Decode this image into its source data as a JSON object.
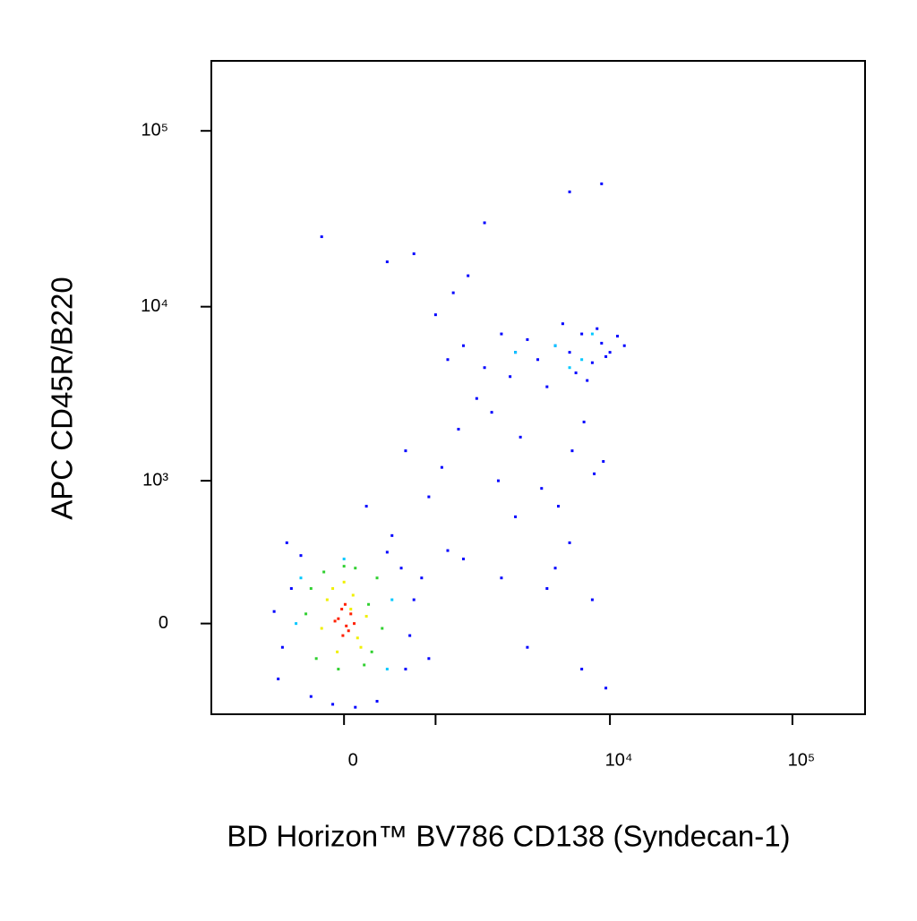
{
  "chart_data": {
    "type": "scatter",
    "x_label": "BD Horizon™ BV786 CD138 (Syndecan-1)",
    "y_label": "APC CD45R/B220",
    "scale": "biexponential",
    "xlim": [
      -1800,
      250000
    ],
    "ylim": [
      -470,
      250000
    ],
    "xticks": [
      {
        "value": 0,
        "label": "0"
      },
      {
        "value": 1000,
        "label": null
      },
      {
        "value": 10000,
        "label": "10⁴"
      },
      {
        "value": 100000,
        "label": "10⁵"
      }
    ],
    "yticks": [
      {
        "value": 0,
        "label": "0"
      },
      {
        "value": 1000,
        "label": "10³"
      },
      {
        "value": 10000,
        "label": "10⁴"
      },
      {
        "value": 100000,
        "label": "10⁵"
      }
    ],
    "series": [
      {
        "color": "#0000ff",
        "x": [
          -600,
          -500,
          -700,
          600,
          700,
          550,
          -300,
          300,
          -650,
          650,
          -400,
          400,
          800,
          900,
          -550,
          100,
          -100,
          450,
          1200,
          1500,
          2000,
          2500,
          3000,
          3500,
          4000,
          5000,
          6000,
          7000,
          8000,
          9000,
          10000,
          11000,
          12000,
          1800,
          2200,
          2800,
          4500,
          5500,
          6500,
          7500,
          8500,
          9500,
          1000,
          1300,
          1600,
          700,
          -200,
          400,
          600,
          900,
          1100,
          1400,
          2400,
          3200,
          4200,
          5200,
          6200,
          7200,
          8200,
          9200,
          1500,
          2500,
          3500,
          4500,
          6000,
          8000,
          9500,
          3000,
          5000,
          7000,
          200,
          1200,
          2000,
          6000,
          9000
        ],
        "y": [
          -100,
          150,
          50,
          -200,
          100,
          250,
          -350,
          -380,
          -250,
          -50,
          320,
          340,
          200,
          -150,
          400,
          -420,
          -400,
          450,
          5000,
          6000,
          4500,
          7000,
          5500,
          6500,
          5000,
          6000,
          5500,
          7000,
          4800,
          6200,
          5500,
          6800,
          6000,
          3000,
          2500,
          4000,
          3500,
          8000,
          4200,
          3800,
          7500,
          5200,
          9000,
          12000,
          15000,
          20000,
          25000,
          18000,
          1500,
          800,
          1200,
          2000,
          1000,
          1800,
          900,
          700,
          1500,
          2200,
          1100,
          1300,
          300,
          200,
          -100,
          150,
          400,
          100,
          -300,
          600,
          250,
          -200,
          700,
          350,
          30000,
          45000,
          50000
        ]
      },
      {
        "color": "#00c8ff",
        "x": [
          5000,
          3000,
          7000,
          8000,
          6000,
          -400,
          400,
          -450,
          450,
          0
        ],
        "y": [
          6000,
          5500,
          5000,
          7000,
          4500,
          200,
          -200,
          0,
          100,
          300
        ]
      },
      {
        "color": "#30d030",
        "x": [
          -300,
          250,
          -250,
          300,
          -50,
          100,
          -350,
          350,
          0,
          180,
          -180,
          220
        ],
        "y": [
          150,
          -120,
          -150,
          200,
          -200,
          250,
          40,
          -20,
          260,
          -180,
          230,
          80
        ]
      },
      {
        "color": "#f0f000",
        "x": [
          -150,
          120,
          -100,
          150,
          0,
          80,
          -200,
          200,
          -60,
          60
        ],
        "y": [
          100,
          -60,
          150,
          -100,
          180,
          120,
          -20,
          30,
          -120,
          60
        ]
      },
      {
        "color": "#ff2000",
        "x": [
          -50,
          20,
          60,
          -20,
          40,
          -80,
          10,
          90,
          -10
        ],
        "y": [
          20,
          -10,
          40,
          60,
          -30,
          10,
          80,
          0,
          -50
        ]
      }
    ]
  }
}
